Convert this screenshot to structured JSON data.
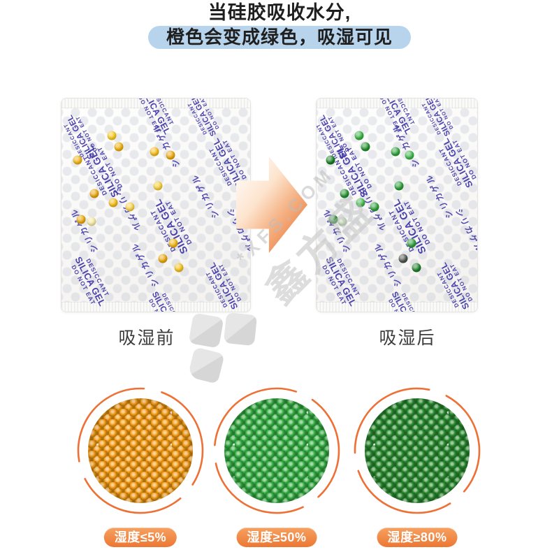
{
  "header": {
    "line1": "当硅胶吸收水分,",
    "line2": "橙色会变成绿色，吸湿可见"
  },
  "comparison": {
    "before_label": "吸湿前",
    "after_label": "吸湿后",
    "packet_print": {
      "top": "DESICCANT",
      "main": "SILICA GEL",
      "bottom": "DO NOT EAT",
      "katakana": "シリカゲル"
    }
  },
  "humidity_stages": [
    {
      "label": "湿度≤5%",
      "bead_color": "#f59e14"
    },
    {
      "label": "湿度≥50%",
      "bead_color": "#37b046"
    },
    {
      "label": "湿度≥80%",
      "bead_color": "#2a8c31"
    }
  ],
  "watermark": {
    "brand_en": "*XFS.COM",
    "brand_cn": "鑫方盛"
  },
  "colors": {
    "accent_orange": "#ee7035",
    "highlight_blue": "#b7d4ec",
    "print_indigo": "#3d33a6",
    "before_bead": "#f0b512",
    "after_bead": "#2f9e3a"
  }
}
